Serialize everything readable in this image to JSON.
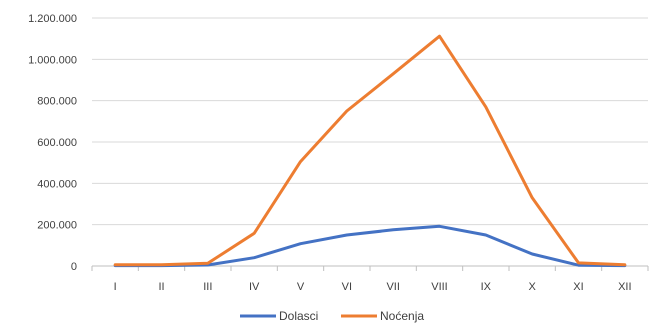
{
  "chart_data": {
    "type": "line",
    "categories": [
      "I",
      "II",
      "III",
      "IV",
      "V",
      "VI",
      "VII",
      "VIII",
      "IX",
      "X",
      "XI",
      "XII"
    ],
    "y_tick_values": [
      0,
      200000,
      400000,
      600000,
      800000,
      1000000,
      1200000
    ],
    "y_tick_labels": [
      "0",
      "200.000",
      "400.000",
      "600.000",
      "800.000",
      "1.000.000",
      "1.200.000"
    ],
    "ylim": [
      0,
      1200000
    ],
    "grid": true,
    "legend_position": "bottom",
    "series": [
      {
        "name": "Dolasci",
        "color": "#4472C4",
        "values": [
          2000,
          2000,
          5000,
          40000,
          108000,
          150000,
          175000,
          192000,
          150000,
          58000,
          4000,
          2000
        ]
      },
      {
        "name": "Noćenja",
        "color": "#ED7D31",
        "values": [
          6000,
          6000,
          13000,
          158000,
          505000,
          750000,
          930000,
          1112000,
          770000,
          330000,
          15000,
          6000
        ]
      }
    ],
    "gridline_color": "#d9d9d9",
    "axis_color": "#bfbfbf"
  }
}
